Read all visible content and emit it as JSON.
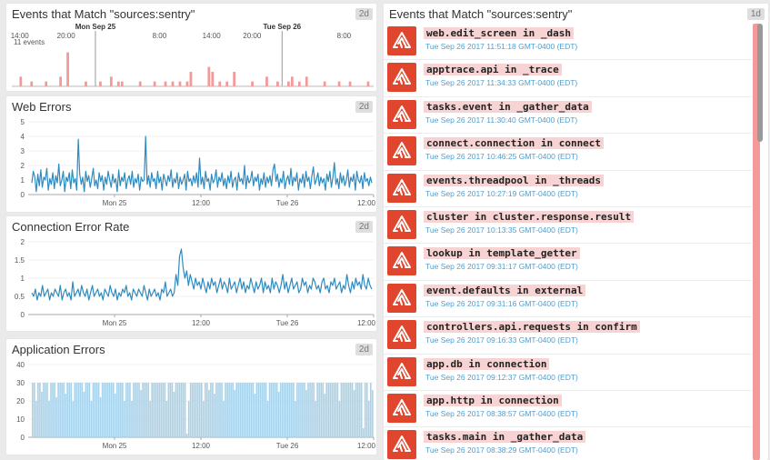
{
  "widgets": {
    "events_timeline": {
      "title": "Events that Match \"sources:sentry\"",
      "badge": "2d",
      "count_label": "11 events",
      "x_ticks": [
        "14:00",
        "20:00",
        "Mon Sep 25",
        "8:00",
        "14:00",
        "20:00",
        "Tue Sep 26",
        "8:00"
      ]
    },
    "web_errors": {
      "title": "Web Errors",
      "badge": "2d"
    },
    "connection_error_rate": {
      "title": "Connection Error Rate",
      "badge": "2d"
    },
    "application_errors": {
      "title": "Application Errors",
      "badge": "2d"
    },
    "event_stream": {
      "title": "Events that Match \"sources:sentry\"",
      "badge": "1d",
      "events": [
        {
          "title": "web.edit_screen in _dash",
          "time": "Tue Sep 26 2017 11:51:18 GMT-0400 (EDT)"
        },
        {
          "title": "apptrace.api in _trace",
          "time": "Tue Sep 26 2017 11:34:33 GMT-0400 (EDT)"
        },
        {
          "title": "tasks.event in _gather_data",
          "time": "Tue Sep 26 2017 11:30:40 GMT-0400 (EDT)"
        },
        {
          "title": "connect.connection in connect",
          "time": "Tue Sep 26 2017 10:46:25 GMT-0400 (EDT)"
        },
        {
          "title": "events.threadpool in _threads",
          "time": "Tue Sep 26 2017 10:27:19 GMT-0400 (EDT)"
        },
        {
          "title": "cluster in cluster.response.result",
          "time": "Tue Sep 26 2017 10:13:35 GMT-0400 (EDT)"
        },
        {
          "title": "lookup in template_getter",
          "time": "Tue Sep 26 2017 09:31:17 GMT-0400 (EDT)"
        },
        {
          "title": "event.defaults in external",
          "time": "Tue Sep 26 2017 09:31:16 GMT-0400 (EDT)"
        },
        {
          "title": "controllers.api.requests in confirm",
          "time": "Tue Sep 26 2017 09:16:33 GMT-0400 (EDT)"
        },
        {
          "title": "app.db in connection",
          "time": "Tue Sep 26 2017 09:12:37 GMT-0400 (EDT)"
        },
        {
          "title": "app.http in connection",
          "time": "Tue Sep 26 2017 08:38:57 GMT-0400 (EDT)"
        },
        {
          "title": "tasks.main in _gather_data",
          "time": "Tue Sep 26 2017 08:38:29 GMT-0400 (EDT)"
        }
      ]
    }
  },
  "colors": {
    "event_bar": "#f29a9a",
    "series_line": "#2e8bc0",
    "series_bar": "#a8d2ea",
    "sentry_red": "#e0452d",
    "title_highlight": "#f7d4d3",
    "time_text": "#4f9ecf"
  },
  "icons": {
    "event_icon": "sentry-logo-icon"
  },
  "chart_data": [
    {
      "type": "bar",
      "name": "events_timeline",
      "title": "Events that Match \"sources:sentry\"",
      "x_ticks": [
        "14:00",
        "20:00",
        "Mon Sep 25",
        "8:00",
        "14:00",
        "20:00",
        "Tue Sep 26",
        "8:00"
      ],
      "values": [
        0,
        0,
        2,
        0,
        0,
        1,
        0,
        0,
        0,
        1,
        0,
        0,
        0,
        2,
        0,
        7,
        0,
        0,
        0,
        0,
        1,
        0,
        0,
        0,
        1,
        0,
        0,
        2,
        0,
        1,
        1,
        0,
        0,
        0,
        0,
        1,
        0,
        0,
        0,
        1,
        0,
        0,
        1,
        0,
        1,
        0,
        1,
        0,
        1,
        3,
        0,
        0,
        0,
        0,
        4,
        3,
        0,
        1,
        0,
        1,
        0,
        3,
        0,
        0,
        0,
        0,
        1,
        0,
        0,
        0,
        2,
        0,
        0,
        1,
        0,
        0,
        1,
        2,
        0,
        1,
        0,
        2,
        0,
        0,
        0,
        0,
        1,
        0,
        0,
        0,
        1,
        0,
        0,
        1,
        0,
        0,
        0,
        0,
        1,
        0
      ],
      "ylim": [
        0,
        11
      ]
    },
    {
      "type": "line",
      "name": "web_errors",
      "title": "Web Errors",
      "y_ticks": [
        0,
        1,
        2,
        3,
        4,
        5
      ],
      "x_ticks": [
        "Mon 25",
        "12:00",
        "Tue 26",
        "12:00"
      ],
      "ylim": [
        0,
        5
      ],
      "values": [
        0.8,
        1.6,
        1.2,
        0.2,
        1.4,
        0.6,
        1.7,
        0.5,
        1.2,
        1.0,
        1.8,
        0.3,
        1.1,
        0.7,
        1.5,
        0.4,
        1.3,
        0.8,
        2.1,
        0.6,
        1.0,
        1.6,
        0.2,
        1.2,
        0.9,
        1.5,
        0.4,
        1.7,
        0.8,
        1.1,
        0.3,
        3.8,
        1.4,
        0.7,
        1.2,
        0.2,
        1.6,
        0.9,
        1.3,
        0.5,
        1.1,
        1.8,
        0.6,
        1.0,
        0.4,
        1.5,
        0.9,
        1.3,
        0.3,
        1.2,
        0.7,
        1.6,
        1.0,
        0.5,
        1.4,
        0.8,
        1.1,
        0.2,
        1.7,
        0.6,
        1.2,
        0.9,
        1.5,
        0.4,
        1.0,
        1.3,
        0.7,
        1.6,
        0.5,
        1.1,
        0.8,
        1.4,
        0.3,
        1.2,
        0.9,
        1.0,
        4.0,
        0.7,
        1.3,
        0.5,
        1.5,
        0.9,
        1.1,
        0.4,
        1.6,
        0.8,
        1.2,
        0.3,
        1.4,
        1.0,
        0.6,
        1.3,
        0.9,
        1.7,
        0.5,
        1.1,
        0.8,
        1.5,
        0.4,
        1.2,
        0.7,
        1.0,
        1.4,
        0.3,
        1.6,
        0.9,
        1.1,
        0.6,
        1.3,
        0.8,
        1.5,
        0.5,
        2.5,
        0.7,
        1.2,
        0.4,
        1.6,
        0.9,
        1.1,
        0.3,
        1.4,
        0.8,
        1.0,
        1.7,
        0.5,
        1.2,
        0.9,
        1.5,
        0.6,
        1.1,
        0.4,
        1.3,
        0.8,
        1.6,
        0.5,
        1.0,
        1.2,
        0.3,
        1.5,
        0.9,
        1.1,
        0.7,
        2.0,
        0.4,
        1.3,
        0.8,
        1.0,
        1.6,
        0.6,
        1.2,
        0.9,
        1.4,
        0.3,
        1.1,
        0.7,
        1.5,
        0.5,
        1.2,
        0.8,
        1.3,
        0.6,
        1.7,
        2.1,
        0.9,
        1.4,
        0.5,
        1.1,
        0.8,
        1.6,
        0.4,
        1.0,
        1.3,
        0.7,
        1.8,
        0.6,
        1.2,
        0.9,
        1.5,
        0.3,
        1.1,
        0.8,
        1.4,
        0.5,
        1.6,
        0.9,
        1.2,
        0.4,
        1.3,
        1.9,
        0.7,
        1.0,
        1.5,
        0.6,
        1.2,
        0.8,
        1.1,
        0.3,
        1.4,
        0.9,
        1.6,
        0.5,
        1.2,
        2.2,
        0.7,
        1.1,
        0.4,
        1.5,
        0.8,
        1.3,
        0.6,
        1.0,
        1.7,
        0.5,
        1.2,
        0.9,
        1.4,
        0.3,
        1.6,
        1.0,
        0.8,
        1.3,
        0.4,
        1.5,
        0.9,
        1.1,
        0.6,
        1.2,
        0.8
      ]
    },
    {
      "type": "line",
      "name": "connection_error_rate",
      "title": "Connection Error Rate",
      "y_ticks": [
        0,
        0.5,
        1,
        1.5,
        2
      ],
      "x_ticks": [
        "Mon 25",
        "12:00",
        "Tue 26",
        "12:00"
      ],
      "ylim": [
        0,
        2
      ],
      "values": [
        0.6,
        0.5,
        0.7,
        0.4,
        0.6,
        0.5,
        0.8,
        0.5,
        0.6,
        0.7,
        0.4,
        0.6,
        0.5,
        0.7,
        0.6,
        0.5,
        0.8,
        0.4,
        0.6,
        0.7,
        0.5,
        0.6,
        0.4,
        0.9,
        0.5,
        0.6,
        0.7,
        0.5,
        0.8,
        0.6,
        0.5,
        0.7,
        0.4,
        0.6,
        0.8,
        0.5,
        0.6,
        0.7,
        0.5,
        0.6,
        0.4,
        0.7,
        0.6,
        0.5,
        0.8,
        0.6,
        0.5,
        0.7,
        0.4,
        0.6,
        0.5,
        0.7,
        0.6,
        0.8,
        0.5,
        0.6,
        0.4,
        0.7,
        0.6,
        0.5,
        0.7,
        0.6,
        0.5,
        0.8,
        0.6,
        0.4,
        0.7,
        0.5,
        0.6,
        0.7,
        0.5,
        0.6,
        0.4,
        0.7,
        0.6,
        0.9,
        0.5,
        0.6,
        0.7,
        0.5,
        0.6,
        1.1,
        0.8,
        1.6,
        1.8,
        1.3,
        1.0,
        1.2,
        0.8,
        1.1,
        0.9,
        0.7,
        1.0,
        0.8,
        0.9,
        0.7,
        1.0,
        0.8,
        0.6,
        0.9,
        0.7,
        1.0,
        0.8,
        0.9,
        0.6,
        0.8,
        1.0,
        0.7,
        0.9,
        0.8,
        0.6,
        1.0,
        0.7,
        0.8,
        0.9,
        0.6,
        0.8,
        1.0,
        0.7,
        0.9,
        0.6,
        0.8,
        0.7,
        1.0,
        0.8,
        0.6,
        0.9,
        0.7,
        0.8,
        1.0,
        0.6,
        0.9,
        0.7,
        0.8,
        0.6,
        1.0,
        0.7,
        0.9,
        0.8,
        0.6,
        0.8,
        1.1,
        0.7,
        0.9,
        0.6,
        0.8,
        1.0,
        0.7,
        0.8,
        0.9,
        0.6,
        0.7,
        1.0,
        0.8,
        0.9,
        0.6,
        0.8,
        0.7,
        1.0,
        0.9,
        0.7,
        0.8,
        0.6,
        0.9,
        1.0,
        0.7,
        0.8,
        0.6,
        0.9,
        0.8,
        1.0,
        0.7,
        0.8,
        0.9,
        0.6,
        0.8,
        0.7,
        1.1,
        0.8,
        0.6,
        0.9,
        0.7,
        1.0,
        0.8,
        0.9,
        0.7,
        1.1,
        0.8,
        0.7,
        1.0,
        0.8,
        0.7
      ]
    },
    {
      "type": "bar",
      "name": "application_errors",
      "title": "Application Errors",
      "y_ticks": [
        0,
        10,
        20,
        30,
        40
      ],
      "x_ticks": [
        "Mon 25",
        "12:00",
        "Tue 26",
        "12:00"
      ],
      "ylim": [
        0,
        40
      ],
      "values": [
        30,
        30,
        20,
        30,
        30,
        25,
        30,
        30,
        30,
        20,
        30,
        30,
        30,
        22,
        30,
        30,
        30,
        30,
        24,
        30,
        30,
        30,
        20,
        30,
        30,
        30,
        30,
        30,
        25,
        30,
        30,
        30,
        20,
        30,
        30,
        30,
        30,
        22,
        30,
        30,
        30,
        30,
        30,
        30,
        30,
        24,
        30,
        30,
        30,
        30,
        20,
        30,
        30,
        30,
        20,
        30,
        30,
        30,
        30,
        26,
        30,
        30,
        30,
        30,
        20,
        30,
        30,
        30,
        30,
        30,
        30,
        30,
        30,
        20,
        30,
        30,
        30,
        25,
        30,
        30,
        30,
        30,
        30,
        30,
        2,
        20,
        30,
        30,
        30,
        30,
        30,
        30,
        30,
        20,
        30,
        30,
        26,
        30,
        30,
        24,
        30,
        30,
        30,
        30,
        20,
        30,
        30,
        30,
        30,
        30,
        26,
        30,
        30,
        30,
        30,
        30,
        30,
        30,
        30,
        30,
        30,
        24,
        30,
        30,
        30,
        30,
        30,
        30,
        20,
        30,
        30,
        30,
        30,
        30,
        25,
        30,
        30,
        30,
        30,
        30,
        30,
        30,
        30,
        20,
        30,
        30,
        30,
        30,
        30,
        26,
        30,
        30,
        30,
        30,
        20,
        30,
        30,
        30,
        30,
        24,
        30,
        30,
        30,
        30,
        30,
        30,
        30,
        20,
        30,
        30,
        30,
        30,
        30,
        30,
        30,
        26,
        30,
        30,
        30,
        30,
        5,
        30,
        30,
        20,
        30,
        26
      ]
    }
  ]
}
